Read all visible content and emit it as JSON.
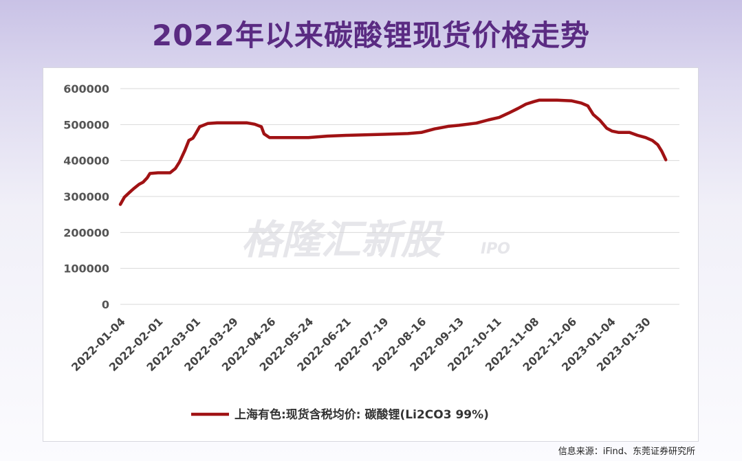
{
  "title": "2022年以来碳酸锂现货价格走势",
  "source_note": "信息来源：iFind、东莞证券研究所",
  "watermark": {
    "text": "格隆汇新股",
    "sub": "IPO"
  },
  "colors": {
    "line": "#a01214",
    "title": "#5a2b82"
  },
  "chart_data": {
    "type": "line",
    "title": "",
    "xlabel": "",
    "ylabel": "",
    "ylim": [
      0,
      600000
    ],
    "yticks": [
      "600000",
      "500000",
      "400000",
      "300000",
      "200000",
      "100000",
      "0"
    ],
    "xticks": [
      "2022-01-04",
      "2022-02-01",
      "2022-03-01",
      "2022-03-29",
      "2022-04-26",
      "2022-05-24",
      "2022-06-21",
      "2022-07-19",
      "2022-08-16",
      "2022-09-13",
      "2022-10-11",
      "2022-11-08",
      "2022-12-06",
      "2023-01-04",
      "2023-01-30"
    ],
    "grid": true,
    "legend_position": "bottom",
    "series": [
      {
        "name": "上海有色:现货含税均价: 碳酸锂(Li2CO3 99%)",
        "color": "#a01214",
        "points": [
          [
            "2022-01-04",
            278000
          ],
          [
            "2022-01-07",
            298000
          ],
          [
            "2022-01-11",
            312000
          ],
          [
            "2022-01-14",
            322000
          ],
          [
            "2022-01-18",
            334000
          ],
          [
            "2022-01-21",
            340000
          ],
          [
            "2022-01-24",
            352000
          ],
          [
            "2022-01-26",
            364000
          ],
          [
            "2022-02-01",
            366000
          ],
          [
            "2022-02-10",
            366000
          ],
          [
            "2022-02-14",
            378000
          ],
          [
            "2022-02-17",
            396000
          ],
          [
            "2022-02-21",
            428000
          ],
          [
            "2022-02-24",
            456000
          ],
          [
            "2022-02-27",
            462000
          ],
          [
            "2022-03-01",
            474000
          ],
          [
            "2022-03-04",
            494000
          ],
          [
            "2022-03-10",
            503000
          ],
          [
            "2022-03-17",
            505000
          ],
          [
            "2022-03-29",
            505000
          ],
          [
            "2022-04-08",
            505000
          ],
          [
            "2022-04-14",
            501000
          ],
          [
            "2022-04-19",
            494000
          ],
          [
            "2022-04-21",
            474000
          ],
          [
            "2022-04-25",
            464000
          ],
          [
            "2022-05-02",
            464000
          ],
          [
            "2022-05-24",
            464000
          ],
          [
            "2022-06-07",
            468000
          ],
          [
            "2022-06-21",
            470000
          ],
          [
            "2022-07-19",
            473000
          ],
          [
            "2022-08-06",
            475000
          ],
          [
            "2022-08-16",
            478000
          ],
          [
            "2022-08-26",
            488000
          ],
          [
            "2022-09-05",
            495000
          ],
          [
            "2022-09-13",
            498000
          ],
          [
            "2022-09-26",
            504000
          ],
          [
            "2022-10-05",
            513000
          ],
          [
            "2022-10-13",
            520000
          ],
          [
            "2022-10-20",
            532000
          ],
          [
            "2022-10-27",
            545000
          ],
          [
            "2022-11-02",
            557000
          ],
          [
            "2022-11-08",
            564000
          ],
          [
            "2022-11-12",
            568000
          ],
          [
            "2022-11-25",
            568000
          ],
          [
            "2022-12-06",
            566000
          ],
          [
            "2022-12-13",
            560000
          ],
          [
            "2022-12-18",
            552000
          ],
          [
            "2022-12-22",
            528000
          ],
          [
            "2022-12-27",
            512000
          ],
          [
            "2023-01-01",
            490000
          ],
          [
            "2023-01-05",
            482000
          ],
          [
            "2023-01-10",
            478000
          ],
          [
            "2023-01-18",
            478000
          ],
          [
            "2023-01-24",
            470000
          ],
          [
            "2023-01-30",
            464000
          ],
          [
            "2023-02-04",
            456000
          ],
          [
            "2023-02-08",
            444000
          ],
          [
            "2023-02-11",
            426000
          ],
          [
            "2023-02-14",
            402000
          ]
        ]
      }
    ]
  }
}
